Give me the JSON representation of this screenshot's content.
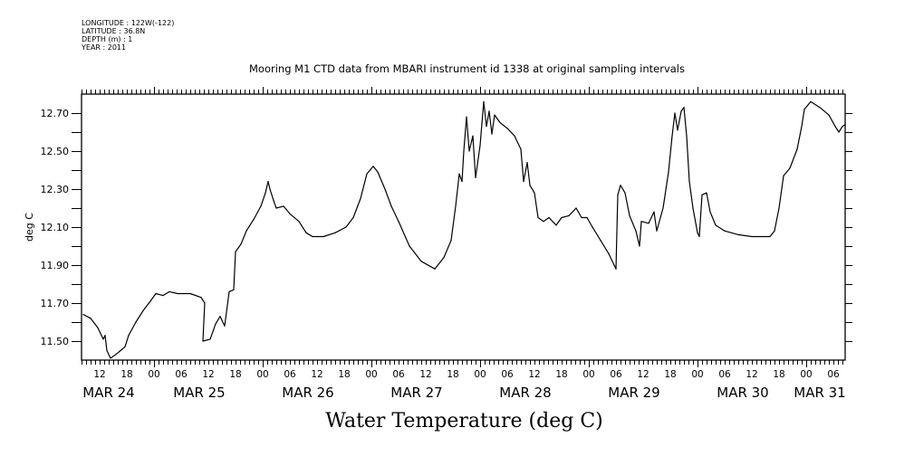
{
  "header": {
    "metadata": [
      "LONGITUDE : 122W(-122)",
      "LATITUDE : 36.8N",
      "DEPTH (m) : 1",
      "YEAR : 2011"
    ],
    "title": "Mooring M1 CTD data from MBARI instrument id 1338 at original sampling intervals"
  },
  "chart_data": {
    "type": "line",
    "title": "Water Temperature (deg C)",
    "subtitle": "Mooring M1 CTD data from MBARI instrument id 1338 at original sampling intervals",
    "xlabel": "",
    "ylabel": "deg C",
    "x_units": "hours since MAR 24 00:00 (2011)",
    "xlim": [
      8,
      176.6
    ],
    "ylim": [
      11.4,
      12.8
    ],
    "yticks": [
      11.5,
      11.7,
      11.9,
      12.1,
      12.3,
      12.5,
      12.7
    ],
    "ytick_labels": [
      "11.50",
      "11.70",
      "11.90",
      "12.10",
      "12.30",
      "12.50",
      "12.70"
    ],
    "x_hour_ticks": [
      {
        "x": 12,
        "label": "12"
      },
      {
        "x": 18,
        "label": "18"
      },
      {
        "x": 24,
        "label": "00"
      },
      {
        "x": 30,
        "label": "06"
      },
      {
        "x": 36,
        "label": "12"
      },
      {
        "x": 42,
        "label": "18"
      },
      {
        "x": 48,
        "label": "00"
      },
      {
        "x": 54,
        "label": "06"
      },
      {
        "x": 60,
        "label": "12"
      },
      {
        "x": 66,
        "label": "18"
      },
      {
        "x": 72,
        "label": "00"
      },
      {
        "x": 78,
        "label": "06"
      },
      {
        "x": 84,
        "label": "12"
      },
      {
        "x": 90,
        "label": "18"
      },
      {
        "x": 96,
        "label": "00"
      },
      {
        "x": 102,
        "label": "06"
      },
      {
        "x": 108,
        "label": "12"
      },
      {
        "x": 114,
        "label": "18"
      },
      {
        "x": 120,
        "label": "00"
      },
      {
        "x": 126,
        "label": "06"
      },
      {
        "x": 132,
        "label": "12"
      },
      {
        "x": 138,
        "label": "18"
      },
      {
        "x": 144,
        "label": "00"
      },
      {
        "x": 150,
        "label": "06"
      },
      {
        "x": 156,
        "label": "12"
      },
      {
        "x": 162,
        "label": "18"
      },
      {
        "x": 168,
        "label": "00"
      },
      {
        "x": 174,
        "label": "06"
      }
    ],
    "x_day_labels": [
      {
        "x": 14,
        "label": "MAR 24"
      },
      {
        "x": 34,
        "label": "MAR 25"
      },
      {
        "x": 58,
        "label": "MAR 26"
      },
      {
        "x": 82,
        "label": "MAR 27"
      },
      {
        "x": 106,
        "label": "MAR 28"
      },
      {
        "x": 130,
        "label": "MAR 29"
      },
      {
        "x": 154,
        "label": "MAR 30"
      },
      {
        "x": 171,
        "label": "MAR 31"
      }
    ],
    "grid": false,
    "legend": "none",
    "series": [
      {
        "name": "Water Temperature",
        "color": "#000000",
        "x": [
          8.4,
          10,
          11.6,
          12.8,
          13.2,
          13.6,
          14.4,
          15.6,
          16.6,
          17.6,
          18.4,
          20,
          21.6,
          23.2,
          24.4,
          26,
          27.4,
          29.2,
          32,
          34.4,
          35.2,
          34.8,
          36.4,
          37.6,
          38.6,
          39.6,
          40.6,
          41.6,
          42,
          43.2,
          44.4,
          46,
          47.6,
          48.6,
          49.2,
          49.6,
          50.4,
          51,
          52.6,
          54,
          56,
          57.6,
          59,
          61.4,
          64,
          66.4,
          68,
          69.6,
          71,
          72.4,
          73.4,
          75,
          76.4,
          78,
          80.4,
          83,
          86,
          88,
          89.6,
          90.6,
          91.4,
          92,
          92.4,
          93,
          93.6,
          94.4,
          95,
          96,
          96.8,
          97.4,
          98,
          98.6,
          99.2,
          100.4,
          102,
          103.6,
          105,
          105.6,
          106.4,
          107,
          108,
          108.8,
          110,
          111.2,
          112.8,
          114,
          115.6,
          117.2,
          118.4,
          119.6,
          120.8,
          122.6,
          124.4,
          126,
          126.4,
          127,
          128,
          129,
          130.4,
          131.2,
          131.6,
          133.2,
          134.4,
          135,
          136.4,
          137.6,
          138.4,
          139,
          139.6,
          140.4,
          141,
          141.6,
          142.2,
          143,
          144,
          144.4,
          145,
          146,
          146.8,
          148,
          150,
          153,
          156,
          160,
          161,
          162,
          163,
          164.4,
          166,
          167,
          167.6,
          169,
          171,
          173,
          174.4,
          175.2,
          176,
          176.6
        ],
        "y": [
          11.64,
          11.62,
          11.57,
          11.51,
          11.53,
          11.45,
          11.41,
          11.43,
          11.45,
          11.47,
          11.53,
          11.6,
          11.66,
          11.71,
          11.75,
          11.74,
          11.76,
          11.75,
          11.75,
          11.73,
          11.7,
          11.5,
          11.51,
          11.59,
          11.63,
          11.58,
          11.76,
          11.77,
          11.97,
          12.01,
          12.08,
          12.14,
          12.21,
          12.28,
          12.34,
          12.3,
          12.24,
          12.2,
          12.21,
          12.17,
          12.13,
          12.07,
          12.05,
          12.05,
          12.07,
          12.1,
          12.15,
          12.25,
          12.38,
          12.42,
          12.39,
          12.3,
          12.21,
          12.13,
          12.0,
          11.92,
          11.88,
          11.94,
          12.03,
          12.21,
          12.38,
          12.34,
          12.5,
          12.68,
          12.5,
          12.58,
          12.36,
          12.53,
          12.76,
          12.63,
          12.71,
          12.59,
          12.69,
          12.65,
          12.62,
          12.58,
          12.51,
          12.34,
          12.44,
          12.32,
          12.28,
          12.15,
          12.13,
          12.15,
          12.11,
          12.15,
          12.16,
          12.2,
          12.15,
          12.15,
          12.1,
          12.03,
          11.96,
          11.88,
          12.27,
          12.32,
          12.28,
          12.16,
          12.08,
          12.0,
          12.13,
          12.12,
          12.18,
          12.08,
          12.2,
          12.39,
          12.58,
          12.7,
          12.61,
          12.71,
          12.73,
          12.58,
          12.34,
          12.2,
          12.07,
          12.05,
          12.27,
          12.28,
          12.18,
          12.11,
          12.08,
          12.06,
          12.05,
          12.05,
          12.08,
          12.2,
          12.37,
          12.41,
          12.51,
          12.63,
          12.72,
          12.76,
          12.73,
          12.69,
          12.63,
          12.6,
          12.63,
          12.64
        ]
      }
    ]
  }
}
